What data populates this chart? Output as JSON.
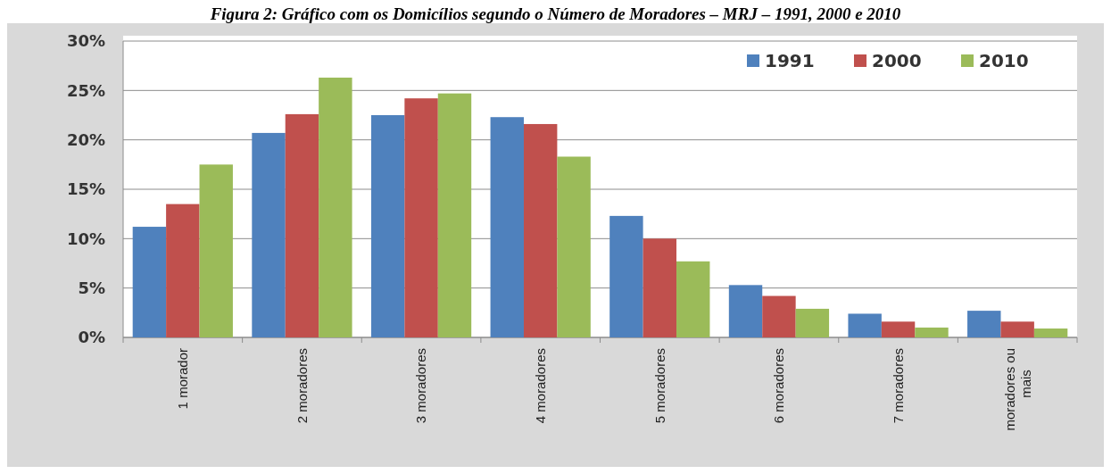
{
  "chart_data": {
    "type": "bar",
    "title": "Figura 2: Gráfico com os Domicílios segundo o Número de Moradores – MRJ – 1991, 2000 e 2010",
    "categories": [
      "1 morador",
      "2 moradores",
      "3 moradores",
      "4 moradores",
      "5 moradores",
      "6 moradores",
      "7 moradores",
      "moradores ou mais"
    ],
    "series": [
      {
        "name": "1991",
        "color": "#4f81bd",
        "values": [
          11.2,
          20.7,
          22.5,
          22.3,
          12.3,
          5.3,
          2.4,
          2.7
        ]
      },
      {
        "name": "2000",
        "color": "#c0504d",
        "values": [
          13.5,
          22.6,
          24.2,
          21.6,
          10.0,
          4.2,
          1.6,
          1.6
        ]
      },
      {
        "name": "2010",
        "color": "#9bbb59",
        "values": [
          17.5,
          26.3,
          24.7,
          18.3,
          7.7,
          2.9,
          1.0,
          0.9
        ]
      }
    ],
    "ylim": [
      0,
      30
    ],
    "yticks": [
      {
        "value": 0,
        "label": "0%"
      },
      {
        "value": 5,
        "label": "5%"
      },
      {
        "value": 10,
        "label": "10%"
      },
      {
        "value": 15,
        "label": "15%"
      },
      {
        "value": 20,
        "label": "20%"
      },
      {
        "value": 25,
        "label": "25%"
      },
      {
        "value": 30,
        "label": "30%"
      }
    ],
    "grid": "y",
    "legend": "top right"
  }
}
